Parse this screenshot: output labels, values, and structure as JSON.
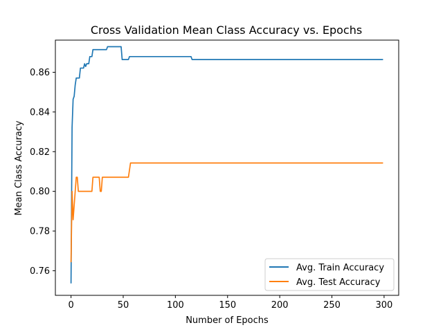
{
  "chart_data": {
    "type": "line",
    "title": "Cross Validation Mean Class Accuracy vs. Epochs",
    "xlabel": "Number of Epochs",
    "ylabel": "Mean Class Accuracy",
    "xlim": [
      -15,
      314
    ],
    "ylim": [
      0.7476,
      0.8762
    ],
    "xticks": [
      0,
      50,
      100,
      150,
      200,
      250,
      300
    ],
    "yticks": [
      0.76,
      0.78,
      0.8,
      0.82,
      0.84,
      0.86
    ],
    "ytick_labels": [
      "0.76",
      "0.78",
      "0.80",
      "0.82",
      "0.84",
      "0.86"
    ],
    "grid": false,
    "legend_position": "lower-right",
    "series": [
      {
        "name": "Avg. Train Accuracy",
        "color": "#1f77b4",
        "points": [
          [
            0,
            0.7536
          ],
          [
            1,
            0.8321
          ],
          [
            2,
            0.8464
          ],
          [
            3,
            0.8479
          ],
          [
            4,
            0.8536
          ],
          [
            5,
            0.8571
          ],
          [
            8,
            0.8571
          ],
          [
            9,
            0.8621
          ],
          [
            12,
            0.8621
          ],
          [
            13,
            0.8643
          ],
          [
            14,
            0.8629
          ],
          [
            15,
            0.8643
          ],
          [
            17,
            0.8643
          ],
          [
            18,
            0.8679
          ],
          [
            20,
            0.8679
          ],
          [
            21,
            0.8714
          ],
          [
            34,
            0.8714
          ],
          [
            35,
            0.8729
          ],
          [
            48,
            0.8729
          ],
          [
            49,
            0.8664
          ],
          [
            55,
            0.8664
          ],
          [
            56,
            0.8679
          ],
          [
            115,
            0.8679
          ],
          [
            116,
            0.8664
          ],
          [
            299,
            0.8664
          ]
        ]
      },
      {
        "name": "Avg. Test Accuracy",
        "color": "#ff7f0e",
        "points": [
          [
            0,
            0.7643
          ],
          [
            1,
            0.8
          ],
          [
            2,
            0.7857
          ],
          [
            3,
            0.7929
          ],
          [
            4,
            0.8
          ],
          [
            5,
            0.8071
          ],
          [
            6,
            0.8071
          ],
          [
            7,
            0.8
          ],
          [
            20,
            0.8
          ],
          [
            21,
            0.8071
          ],
          [
            27,
            0.8071
          ],
          [
            28,
            0.8
          ],
          [
            29,
            0.8
          ],
          [
            30,
            0.8071
          ],
          [
            55,
            0.8071
          ],
          [
            57,
            0.8143
          ],
          [
            299,
            0.8143
          ]
        ]
      }
    ]
  }
}
